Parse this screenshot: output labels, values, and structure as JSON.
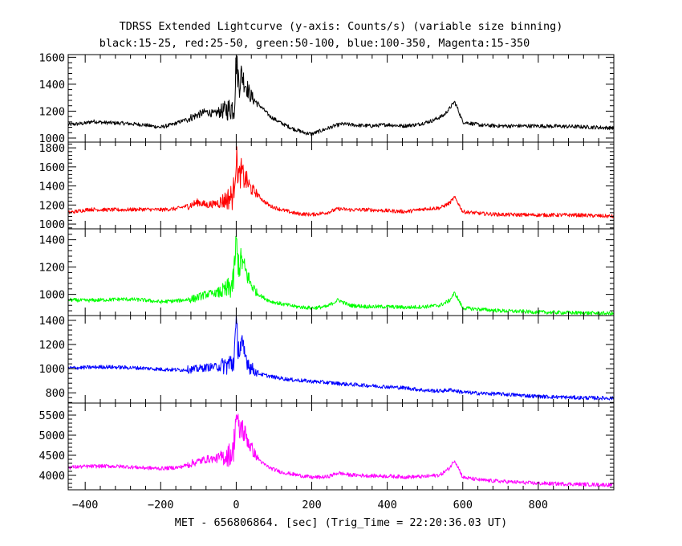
{
  "chart_data": {
    "type": "line",
    "title": "TDRSS Extended Lightcurve (y-axis: Counts/s) (variable size binning)",
    "subtitle": "black:15-25, red:25-50, green:50-100, blue:100-350, Magenta:15-350",
    "xlabel": "MET - 656806864. [sec] (Trig_Time = 22:20:36.03 UT)",
    "xlim": [
      -445,
      1000
    ],
    "xticks": [
      -400,
      -200,
      0,
      200,
      400,
      600,
      800
    ],
    "grid": false,
    "panels": [
      {
        "name": "black:15-25",
        "color": "#000000",
        "ylim": [
          970,
          1620
        ],
        "yticks": [
          1000,
          1200,
          1400,
          1600
        ],
        "points": [
          [
            -445,
            1100
          ],
          [
            -400,
            1110
          ],
          [
            -380,
            1125
          ],
          [
            -350,
            1115
          ],
          [
            -300,
            1110
          ],
          [
            -250,
            1100
          ],
          [
            -200,
            1080
          ],
          [
            -170,
            1100
          ],
          [
            -130,
            1140
          ],
          [
            -100,
            1175
          ],
          [
            -80,
            1195
          ],
          [
            -60,
            1180
          ],
          [
            -40,
            1200
          ],
          [
            -20,
            1215
          ],
          [
            -5,
            1240
          ],
          [
            0,
            1580
          ],
          [
            3,
            1500
          ],
          [
            8,
            1400
          ],
          [
            14,
            1480
          ],
          [
            20,
            1430
          ],
          [
            28,
            1380
          ],
          [
            35,
            1330
          ],
          [
            45,
            1290
          ],
          [
            55,
            1260
          ],
          [
            70,
            1220
          ],
          [
            90,
            1160
          ],
          [
            120,
            1110
          ],
          [
            150,
            1070
          ],
          [
            180,
            1040
          ],
          [
            200,
            1030
          ],
          [
            230,
            1060
          ],
          [
            260,
            1090
          ],
          [
            280,
            1105
          ],
          [
            320,
            1095
          ],
          [
            360,
            1090
          ],
          [
            400,
            1100
          ],
          [
            440,
            1090
          ],
          [
            480,
            1100
          ],
          [
            520,
            1130
          ],
          [
            550,
            1170
          ],
          [
            565,
            1220
          ],
          [
            578,
            1270
          ],
          [
            585,
            1230
          ],
          [
            600,
            1120
          ],
          [
            650,
            1095
          ],
          [
            700,
            1090
          ],
          [
            800,
            1090
          ],
          [
            900,
            1085
          ],
          [
            1000,
            1075
          ]
        ]
      },
      {
        "name": "red:25-50",
        "color": "#ff0000",
        "ylim": [
          950,
          1860
        ],
        "yticks": [
          1000,
          1200,
          1400,
          1600,
          1800
        ],
        "points": [
          [
            -445,
            1120
          ],
          [
            -420,
            1135
          ],
          [
            -390,
            1155
          ],
          [
            -350,
            1150
          ],
          [
            -300,
            1150
          ],
          [
            -250,
            1155
          ],
          [
            -200,
            1150
          ],
          [
            -160,
            1160
          ],
          [
            -120,
            1200
          ],
          [
            -100,
            1230
          ],
          [
            -80,
            1200
          ],
          [
            -50,
            1220
          ],
          [
            -25,
            1260
          ],
          [
            -8,
            1300
          ],
          [
            0,
            1700
          ],
          [
            3,
            1600
          ],
          [
            8,
            1480
          ],
          [
            14,
            1560
          ],
          [
            20,
            1480
          ],
          [
            28,
            1450
          ],
          [
            36,
            1390
          ],
          [
            45,
            1350
          ],
          [
            55,
            1320
          ],
          [
            70,
            1250
          ],
          [
            90,
            1190
          ],
          [
            120,
            1150
          ],
          [
            160,
            1110
          ],
          [
            200,
            1100
          ],
          [
            240,
            1120
          ],
          [
            270,
            1160
          ],
          [
            300,
            1150
          ],
          [
            350,
            1150
          ],
          [
            400,
            1140
          ],
          [
            450,
            1130
          ],
          [
            500,
            1160
          ],
          [
            540,
            1170
          ],
          [
            565,
            1220
          ],
          [
            578,
            1280
          ],
          [
            585,
            1240
          ],
          [
            600,
            1130
          ],
          [
            650,
            1110
          ],
          [
            700,
            1100
          ],
          [
            800,
            1095
          ],
          [
            900,
            1095
          ],
          [
            1000,
            1080
          ]
        ]
      },
      {
        "name": "green:50-100",
        "color": "#00ff00",
        "ylim": [
          845,
          1480
        ],
        "yticks": [
          1000,
          1200,
          1400
        ],
        "points": [
          [
            -445,
            960
          ],
          [
            -400,
            955
          ],
          [
            -350,
            960
          ],
          [
            -300,
            965
          ],
          [
            -250,
            960
          ],
          [
            -200,
            945
          ],
          [
            -150,
            955
          ],
          [
            -110,
            970
          ],
          [
            -80,
            1000
          ],
          [
            -50,
            1010
          ],
          [
            -25,
            1030
          ],
          [
            -8,
            1080
          ],
          [
            0,
            1380
          ],
          [
            3,
            1280
          ],
          [
            8,
            1200
          ],
          [
            14,
            1260
          ],
          [
            20,
            1200
          ],
          [
            28,
            1150
          ],
          [
            36,
            1090
          ],
          [
            45,
            1050
          ],
          [
            55,
            1010
          ],
          [
            70,
            980
          ],
          [
            90,
            950
          ],
          [
            120,
            930
          ],
          [
            160,
            910
          ],
          [
            200,
            900
          ],
          [
            240,
            910
          ],
          [
            270,
            960
          ],
          [
            300,
            920
          ],
          [
            350,
            910
          ],
          [
            400,
            910
          ],
          [
            450,
            905
          ],
          [
            500,
            910
          ],
          [
            540,
            920
          ],
          [
            565,
            955
          ],
          [
            578,
            1010
          ],
          [
            585,
            980
          ],
          [
            600,
            900
          ],
          [
            650,
            890
          ],
          [
            700,
            880
          ],
          [
            800,
            870
          ],
          [
            900,
            865
          ],
          [
            1000,
            860
          ]
        ]
      },
      {
        "name": "blue:100-350",
        "color": "#0000ff",
        "ylim": [
          715,
          1440
        ],
        "yticks": [
          800,
          1000,
          1200,
          1400
        ],
        "points": [
          [
            -445,
            1005
          ],
          [
            -400,
            1010
          ],
          [
            -350,
            1015
          ],
          [
            -300,
            1010
          ],
          [
            -250,
            1005
          ],
          [
            -200,
            995
          ],
          [
            -150,
            990
          ],
          [
            -110,
            995
          ],
          [
            -80,
            1010
          ],
          [
            -50,
            1020
          ],
          [
            -25,
            1030
          ],
          [
            -8,
            1050
          ],
          [
            0,
            1330
          ],
          [
            3,
            1250
          ],
          [
            8,
            1150
          ],
          [
            14,
            1200
          ],
          [
            20,
            1130
          ],
          [
            28,
            1080
          ],
          [
            36,
            1020
          ],
          [
            45,
            990
          ],
          [
            55,
            965
          ],
          [
            70,
            950
          ],
          [
            100,
            930
          ],
          [
            140,
            910
          ],
          [
            180,
            900
          ],
          [
            220,
            890
          ],
          [
            260,
            880
          ],
          [
            300,
            870
          ],
          [
            350,
            860
          ],
          [
            400,
            850
          ],
          [
            450,
            840
          ],
          [
            500,
            820
          ],
          [
            540,
            815
          ],
          [
            570,
            825
          ],
          [
            590,
            810
          ],
          [
            620,
            800
          ],
          [
            650,
            795
          ],
          [
            700,
            790
          ],
          [
            800,
            770
          ],
          [
            900,
            760
          ],
          [
            1000,
            755
          ]
        ]
      },
      {
        "name": "Magenta:15-350",
        "color": "#ff00ff",
        "ylim": [
          3640,
          5800
        ],
        "yticks": [
          4000,
          4500,
          5000,
          5500
        ],
        "points": [
          [
            -445,
            4200
          ],
          [
            -400,
            4220
          ],
          [
            -350,
            4230
          ],
          [
            -300,
            4220
          ],
          [
            -250,
            4190
          ],
          [
            -200,
            4170
          ],
          [
            -150,
            4200
          ],
          [
            -110,
            4320
          ],
          [
            -80,
            4400
          ],
          [
            -50,
            4420
          ],
          [
            -25,
            4480
          ],
          [
            -8,
            4580
          ],
          [
            0,
            5550
          ],
          [
            3,
            5300
          ],
          [
            8,
            5050
          ],
          [
            14,
            5250
          ],
          [
            20,
            5050
          ],
          [
            28,
            4950
          ],
          [
            36,
            4750
          ],
          [
            45,
            4600
          ],
          [
            55,
            4450
          ],
          [
            70,
            4300
          ],
          [
            90,
            4180
          ],
          [
            120,
            4080
          ],
          [
            160,
            4010
          ],
          [
            200,
            3950
          ],
          [
            240,
            3960
          ],
          [
            270,
            4060
          ],
          [
            300,
            4010
          ],
          [
            350,
            3990
          ],
          [
            400,
            3980
          ],
          [
            450,
            3960
          ],
          [
            500,
            3970
          ],
          [
            540,
            4010
          ],
          [
            565,
            4180
          ],
          [
            578,
            4380
          ],
          [
            585,
            4260
          ],
          [
            600,
            3950
          ],
          [
            650,
            3880
          ],
          [
            700,
            3850
          ],
          [
            800,
            3800
          ],
          [
            900,
            3780
          ],
          [
            1000,
            3760
          ]
        ]
      }
    ]
  }
}
